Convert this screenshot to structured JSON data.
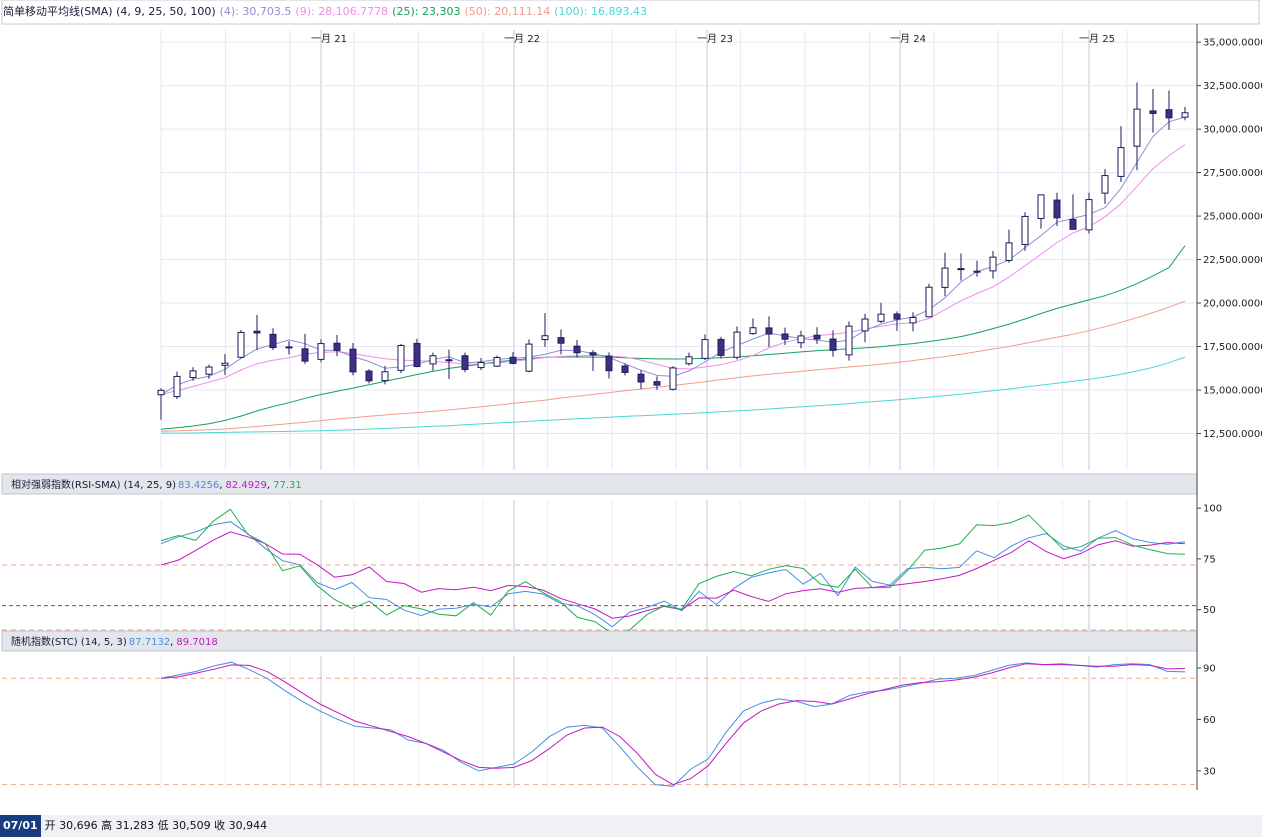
{
  "legend_main": {
    "name": "简单移动平均线(SMA) (4, 9, 25, 50, 100)",
    "sma4": "(4): 30,703.5",
    "sma9": "(9): 28,106.7778",
    "sma25": "(25): 23,303",
    "sma50": "(50): 20,111.14",
    "sma100": "(100): 16,893.43"
  },
  "legend_rsi": {
    "name": "相对强弱指数(RSI-SMA) (14, 25, 9)",
    "v1": "83.4256",
    "v2": "82.4929",
    "v3": "77.31"
  },
  "legend_stc": {
    "name": "随机指数(STC) (14, 5, 3)",
    "v1": "87.7132",
    "v2": "89.7018"
  },
  "footer": {
    "date": "07/01",
    "ohlc": "开 30,696 高 31,283 低 30,509 收 30,944"
  },
  "colors": {
    "sma4": "#8e8ed8",
    "sma9": "#ee8cee",
    "sma25": "#15a15a",
    "sma50": "#f49a8a",
    "sma100": "#4fd6d6",
    "rsi": "#4a8ede",
    "rsi_sma": "#c218c2",
    "rsi3": "#20b050",
    "stc_k": "#4a8ede",
    "stc_d": "#c218c2",
    "candle_up_fill": "#ffffff",
    "candle_down_fill": "#3e2f86",
    "candle_stroke": "#1c1c5a"
  },
  "chart_data": [
    {
      "type": "candlestick",
      "x_ticks": [
        "一月 21",
        "一月 22",
        "一月 23",
        "一月 24",
        "一月 25"
      ],
      "y_ticks": [
        "35,000.0000",
        "32,500.0000",
        "30,000.0000",
        "27,500.0000",
        "25,000.0000",
        "22,500.0000",
        "20,000.0000",
        "17,500.0000",
        "15,000.0000",
        "12,500.0000"
      ],
      "ylim": [
        10400,
        35700
      ],
      "candles": [
        [
          14730,
          15110,
          13290,
          14980
        ],
        [
          14620,
          16060,
          14480,
          15780
        ],
        [
          15720,
          16310,
          15530,
          16100
        ],
        [
          15910,
          16460,
          15650,
          16320
        ],
        [
          16420,
          17060,
          15860,
          16540
        ],
        [
          16880,
          18450,
          16820,
          18310
        ],
        [
          18380,
          19320,
          17290,
          18280
        ],
        [
          18200,
          18550,
          17300,
          17440
        ],
        [
          17420,
          17800,
          17040,
          17480
        ],
        [
          17370,
          18230,
          16500,
          16660
        ],
        [
          16760,
          17920,
          16590,
          17670
        ],
        [
          17690,
          18160,
          16950,
          17280
        ],
        [
          17350,
          17700,
          15840,
          16040
        ],
        [
          16090,
          16200,
          15380,
          15530
        ],
        [
          15540,
          16390,
          15320,
          16050
        ],
        [
          16130,
          17650,
          15970,
          17560
        ],
        [
          17680,
          17950,
          16310,
          16350
        ],
        [
          16500,
          17150,
          16110,
          16970
        ],
        [
          16710,
          17320,
          15630,
          16740
        ],
        [
          16970,
          17150,
          16020,
          16180
        ],
        [
          16290,
          16840,
          16150,
          16580
        ],
        [
          16370,
          16980,
          16320,
          16870
        ],
        [
          16880,
          17180,
          16480,
          16530
        ],
        [
          16080,
          17910,
          16020,
          17640
        ],
        [
          17900,
          19420,
          17480,
          18120
        ],
        [
          18010,
          18480,
          17050,
          17690
        ],
        [
          17520,
          17880,
          16860,
          17140
        ],
        [
          17140,
          17290,
          16100,
          17020
        ],
        [
          16940,
          17160,
          15660,
          16110
        ],
        [
          16380,
          16520,
          15840,
          16010
        ],
        [
          15910,
          16140,
          15060,
          15460
        ],
        [
          15480,
          15780,
          15010,
          15280
        ],
        [
          15040,
          16370,
          14970,
          16270
        ],
        [
          16510,
          17150,
          16400,
          16910
        ],
        [
          16820,
          18200,
          16720,
          17900
        ],
        [
          17910,
          18060,
          16820,
          16990
        ],
        [
          16880,
          18650,
          16750,
          18330
        ],
        [
          18240,
          19120,
          18180,
          18580
        ],
        [
          18570,
          19230,
          17470,
          18220
        ],
        [
          18220,
          18590,
          17590,
          17920
        ],
        [
          17720,
          18410,
          17400,
          18110
        ],
        [
          18150,
          18610,
          17650,
          17940
        ],
        [
          17930,
          18430,
          16910,
          17280
        ],
        [
          17020,
          18940,
          16690,
          18670
        ],
        [
          18400,
          19380,
          17750,
          19080
        ],
        [
          18950,
          20020,
          18850,
          19360
        ],
        [
          19370,
          19520,
          18400,
          19080
        ],
        [
          18860,
          19470,
          18370,
          19170
        ],
        [
          19210,
          21110,
          19180,
          20910
        ],
        [
          20900,
          22890,
          20400,
          22010
        ],
        [
          21930,
          22850,
          21290,
          21980
        ],
        [
          21820,
          22440,
          21520,
          21830
        ],
        [
          21850,
          22990,
          21420,
          22640
        ],
        [
          22450,
          24220,
          22320,
          23460
        ],
        [
          23370,
          25220,
          23000,
          24980
        ],
        [
          24860,
          26170,
          24280,
          26220
        ],
        [
          25920,
          26340,
          24430,
          24900
        ],
        [
          24800,
          26250,
          24390,
          24240
        ],
        [
          24210,
          26340,
          24000,
          25950
        ],
        [
          26320,
          27700,
          25700,
          27330
        ],
        [
          27280,
          30170,
          26960,
          28940
        ],
        [
          29020,
          32680,
          27640,
          31150
        ],
        [
          31050,
          32310,
          29800,
          30900
        ],
        [
          31120,
          32220,
          29960,
          30650
        ],
        [
          30690,
          31280,
          30510,
          30940
        ]
      ],
      "sma4": [
        14730,
        15290,
        15620,
        15790,
        16190,
        16820,
        17360,
        17610,
        17880,
        17660,
        17280,
        17280,
        16920,
        16640,
        16250,
        16330,
        16480,
        16760,
        16910,
        16560,
        16620,
        16760,
        16830,
        16880,
        17060,
        17280,
        17270,
        17100,
        16870,
        16500,
        16140,
        15840,
        15780,
        16100,
        16610,
        17190,
        17560,
        17930,
        18270,
        18110,
        17960,
        17870,
        17740,
        17870,
        18420,
        18790,
        19030,
        19200,
        19610,
        20310,
        21210,
        21810,
        22100,
        22470,
        23180,
        23880,
        24650,
        24860,
        25100,
        25490,
        26600,
        28100,
        29580,
        30420,
        30700
      ],
      "sma9": [
        14730,
        14970,
        15200,
        15460,
        15710,
        16150,
        16510,
        16710,
        16860,
        17050,
        17160,
        17200,
        17100,
        16930,
        16800,
        16720,
        16690,
        16640,
        16580,
        16490,
        16490,
        16560,
        16650,
        16750,
        16870,
        16930,
        16960,
        16990,
        16980,
        16890,
        16720,
        16470,
        16240,
        16210,
        16320,
        16460,
        16680,
        16990,
        17420,
        17740,
        17950,
        18130,
        18210,
        18320,
        18510,
        18660,
        18800,
        18870,
        19110,
        19630,
        20130,
        20550,
        20930,
        21490,
        22150,
        22800,
        23480,
        24030,
        24390,
        24960,
        25710,
        26710,
        27730,
        28480,
        29110
      ],
      "sma25": [
        12740,
        12830,
        12930,
        13060,
        13250,
        13500,
        13800,
        14050,
        14270,
        14520,
        14740,
        14930,
        15110,
        15300,
        15500,
        15690,
        15890,
        16070,
        16240,
        16370,
        16490,
        16620,
        16710,
        16810,
        16880,
        16900,
        16900,
        16890,
        16890,
        16850,
        16810,
        16790,
        16780,
        16790,
        16820,
        16860,
        16900,
        16970,
        17040,
        17110,
        17190,
        17260,
        17310,
        17370,
        17420,
        17490,
        17590,
        17670,
        17790,
        17920,
        18070,
        18280,
        18530,
        18790,
        19080,
        19400,
        19690,
        19940,
        20180,
        20420,
        20740,
        21110,
        21560,
        22040,
        23300
      ],
      "sma50": [
        12630,
        12650,
        12680,
        12710,
        12760,
        12830,
        12900,
        12980,
        13070,
        13150,
        13240,
        13330,
        13410,
        13490,
        13560,
        13630,
        13700,
        13770,
        13850,
        13940,
        14040,
        14130,
        14230,
        14330,
        14420,
        14540,
        14640,
        14740,
        14850,
        14960,
        15060,
        15150,
        15260,
        15370,
        15480,
        15600,
        15710,
        15810,
        15900,
        15990,
        16070,
        16160,
        16240,
        16320,
        16390,
        16480,
        16580,
        16690,
        16810,
        16920,
        17060,
        17210,
        17360,
        17500,
        17680,
        17860,
        18030,
        18210,
        18410,
        18640,
        18890,
        19160,
        19450,
        19760,
        20110
      ],
      "sma100": [
        12520,
        12520,
        12530,
        12550,
        12560,
        12580,
        12590,
        12610,
        12620,
        12640,
        12660,
        12690,
        12720,
        12750,
        12790,
        12830,
        12870,
        12910,
        12950,
        13000,
        13050,
        13100,
        13150,
        13200,
        13250,
        13300,
        13350,
        13390,
        13430,
        13480,
        13520,
        13560,
        13600,
        13650,
        13700,
        13750,
        13800,
        13850,
        13910,
        13970,
        14030,
        14090,
        14150,
        14220,
        14290,
        14360,
        14430,
        14510,
        14590,
        14670,
        14760,
        14860,
        14960,
        15060,
        15170,
        15280,
        15390,
        15500,
        15620,
        15750,
        15910,
        16090,
        16300,
        16570,
        16890
      ]
    },
    {
      "type": "line",
      "title": "RSI-SMA",
      "y_ticks": [
        100,
        75,
        50
      ],
      "ylim": [
        40,
        104
      ],
      "ref_lines": [
        72,
        52,
        40
      ],
      "series": [
        {
          "name": "83.4256",
          "values": [
            82.5,
            85.9,
            88.3,
            91.8,
            93.3,
            87.4,
            80.2,
            74.1,
            72.1,
            63.3,
            59.9,
            63.4,
            55.9,
            55.0,
            49.8,
            47.1,
            50.3,
            50.7,
            52.6,
            51.3,
            57.8,
            59.0,
            57.7,
            53.2,
            51.9,
            47.6,
            41.6,
            48.8,
            51.1,
            54.3,
            49.5,
            59.0,
            52.5,
            60.5,
            65.9,
            68.1,
            69.8,
            62.6,
            67.8,
            56.9,
            71.0,
            63.9,
            62.1,
            70.2,
            70.9,
            70.2,
            70.8,
            79.0,
            75.6,
            81.4,
            85.4,
            87.5,
            81.4,
            78.8,
            85.3,
            88.9,
            84.9,
            83.1,
            82.2,
            83.4
          ]
        },
        {
          "name": "82.4929",
          "values": [
            72.0,
            74.4,
            79.2,
            84.2,
            88.3,
            85.9,
            82.6,
            77.4,
            77.3,
            72.1,
            66.0,
            67.2,
            71.0,
            63.9,
            62.9,
            58.6,
            60.4,
            59.8,
            61.0,
            59.4,
            61.9,
            61.4,
            59.7,
            55.6,
            52.9,
            50.4,
            45.8,
            46.9,
            49.6,
            51.6,
            50.0,
            55.8,
            55.7,
            59.6,
            56.5,
            54.1,
            57.8,
            59.4,
            60.3,
            58.6,
            60.5,
            60.9,
            61.8,
            62.8,
            63.9,
            65.2,
            66.9,
            70.3,
            74.3,
            78.2,
            83.9,
            78.6,
            75.1,
            77.7,
            82.0,
            83.9,
            81.2,
            81.8,
            83.1,
            82.5
          ]
        },
        {
          "name": "77.31",
          "values": [
            84.0,
            86.5,
            84.1,
            93.5,
            99.4,
            87.1,
            82.6,
            69.2,
            71.6,
            61.8,
            55.0,
            50.6,
            54.2,
            47.4,
            52.0,
            50.4,
            47.8,
            47.0,
            53.5,
            47.3,
            59.2,
            63.8,
            58.4,
            54.0,
            46.2,
            44.1,
            38.2,
            40.0,
            47.6,
            51.9,
            50.2,
            62.8,
            66.4,
            68.8,
            66.7,
            69.9,
            71.7,
            70.3,
            62.6,
            61.0,
            70.0,
            60.8,
            60.9,
            69.1,
            79.3,
            80.3,
            82.4,
            91.8,
            91.4,
            92.9,
            96.5,
            88.1,
            79.6,
            81.0,
            85.2,
            85.5,
            81.7,
            79.5,
            77.6,
            77.3
          ]
        }
      ]
    },
    {
      "type": "line",
      "title": "STC",
      "y_ticks": [
        90,
        60,
        30
      ],
      "ylim": [
        20,
        97
      ],
      "ref_lines": [
        84,
        22
      ],
      "series": [
        {
          "name": "87.7132",
          "values": [
            84.0,
            86.0,
            88.0,
            91.2,
            93.4,
            89.0,
            84.0,
            77.0,
            70.5,
            65.0,
            60.0,
            56.0,
            55.0,
            54.0,
            48.0,
            46.0,
            42.0,
            35.0,
            30.0,
            32.0,
            34.0,
            41.0,
            50.0,
            55.5,
            56.5,
            55.0,
            44.0,
            32.0,
            22.0,
            21.0,
            31.0,
            37.0,
            52.5,
            65.0,
            69.5,
            72.0,
            70.5,
            67.5,
            69.0,
            74.0,
            76.0,
            77.0,
            79.0,
            81.0,
            83.5,
            84.0,
            85.5,
            88.5,
            91.5,
            93.0,
            92.0,
            92.5,
            91.5,
            90.5,
            92.0,
            92.5,
            92.0,
            88.0,
            87.7
          ]
        },
        {
          "name": "89.7018",
          "values": [
            84.0,
            84.8,
            87.0,
            89.3,
            91.8,
            91.5,
            88.0,
            82.0,
            75.5,
            69.0,
            64.0,
            59.0,
            56.0,
            53.0,
            50.0,
            46.0,
            41.0,
            36.0,
            32.0,
            31.5,
            32.0,
            36.0,
            43.0,
            51.0,
            55.0,
            55.5,
            50.0,
            40.0,
            28.0,
            22.0,
            25.5,
            33.0,
            46.0,
            58.0,
            65.0,
            69.0,
            71.0,
            70.5,
            69.0,
            72.0,
            75.0,
            77.5,
            80.0,
            81.5,
            82.0,
            83.0,
            84.5,
            87.0,
            90.0,
            92.5,
            92.0,
            92.0,
            91.5,
            91.0,
            91.0,
            92.0,
            91.5,
            89.5,
            89.7
          ]
        }
      ]
    }
  ]
}
